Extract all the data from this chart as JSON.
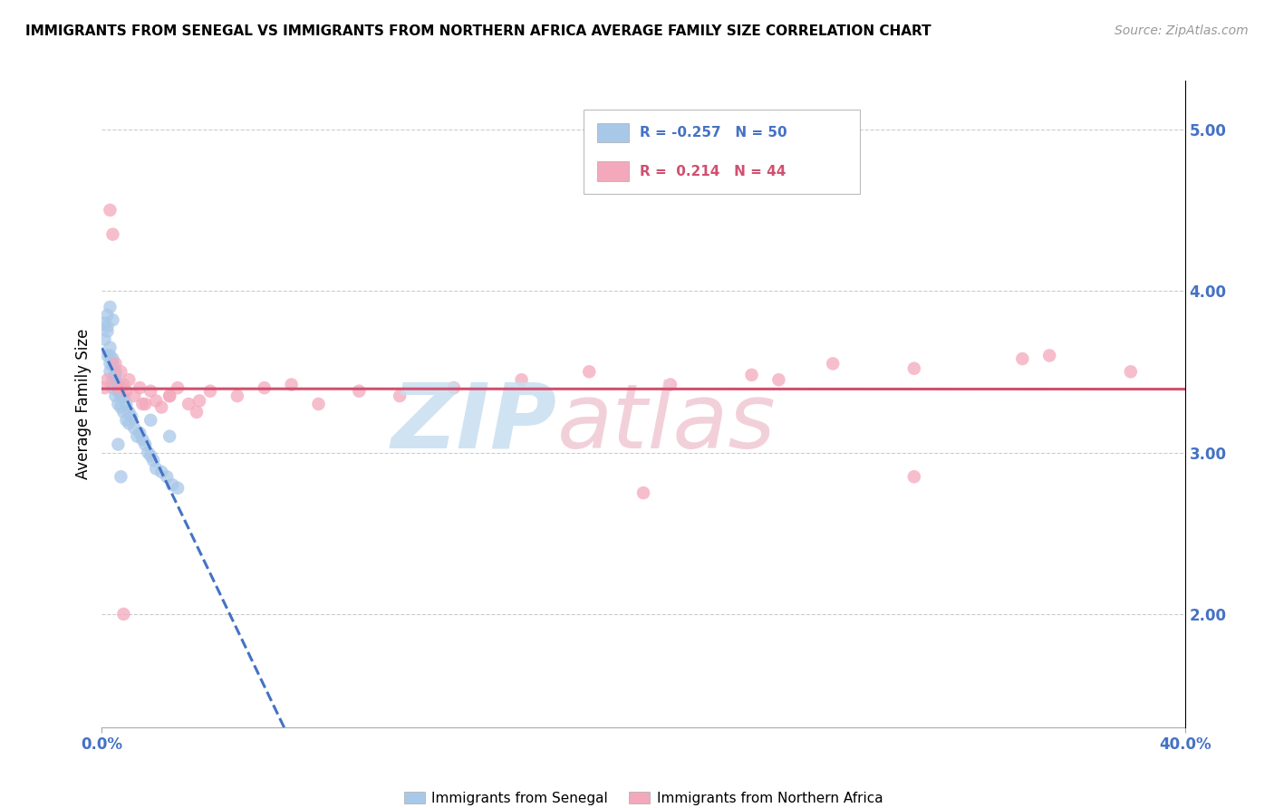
{
  "title": "IMMIGRANTS FROM SENEGAL VS IMMIGRANTS FROM NORTHERN AFRICA AVERAGE FAMILY SIZE CORRELATION CHART",
  "source": "Source: ZipAtlas.com",
  "ylabel": "Average Family Size",
  "right_yticks": [
    2.0,
    3.0,
    4.0,
    5.0
  ],
  "legend1_r": "-0.257",
  "legend1_n": "50",
  "legend2_r": "0.214",
  "legend2_n": "44",
  "xlim": [
    0.0,
    0.4
  ],
  "ylim": [
    1.3,
    5.3
  ],
  "senegal_color": "#A8C8E8",
  "northern_africa_color": "#F4A8BC",
  "senegal_line_color": "#4472C4",
  "northern_africa_line_color": "#D05070",
  "grid_color": "#CCCCCC",
  "title_fontsize": 11,
  "source_fontsize": 10,
  "axis_label_fontsize": 12
}
